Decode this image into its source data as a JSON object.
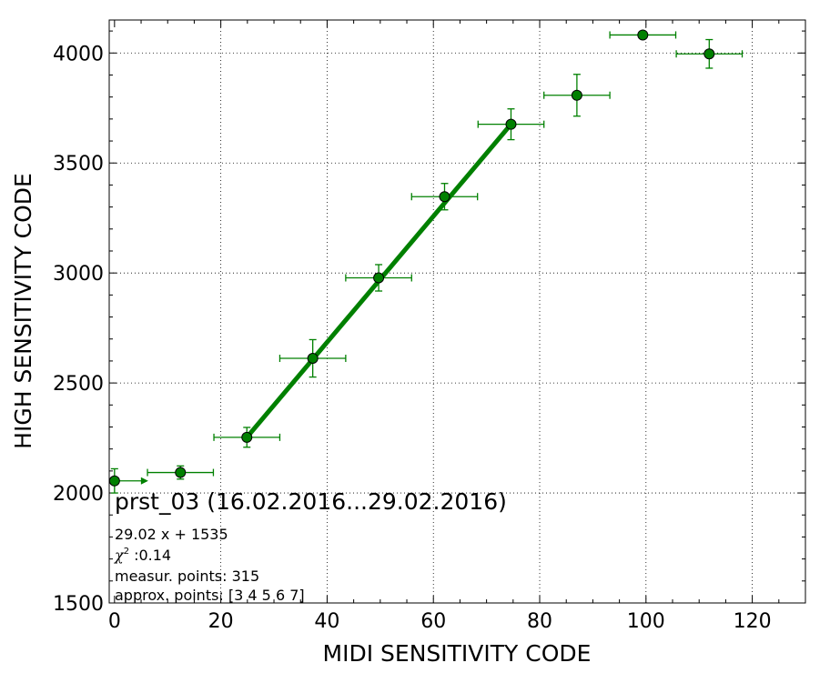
{
  "chart_data": {
    "type": "scatter",
    "title": "",
    "xlabel": "MIDI SENSITIVITY CODE",
    "ylabel": "HIGH SENSITIVITY CODE",
    "xlim": [
      -1,
      130
    ],
    "ylim": [
      1500,
      4150
    ],
    "x_ticks": [
      0,
      20,
      40,
      60,
      80,
      100,
      120
    ],
    "y_ticks": [
      1500,
      2000,
      2500,
      3000,
      3500,
      4000
    ],
    "x_tick_labels": [
      "0",
      "20",
      "40",
      "60",
      "80",
      "100",
      "120"
    ],
    "y_tick_labels": [
      "1500",
      "2000",
      "2500",
      "3000",
      "3500",
      "4000"
    ],
    "grid": true,
    "marker_color": "#008000",
    "line_color": "#008000",
    "points": [
      {
        "x": 0,
        "y": 2055,
        "xerr": 6,
        "yerr": 55
      },
      {
        "x": 12.4,
        "y": 2093,
        "xerr": 6.2,
        "yerr": 30
      },
      {
        "x": 24.9,
        "y": 2253,
        "xerr": 6.2,
        "yerr": 45
      },
      {
        "x": 37.3,
        "y": 2612,
        "xerr": 6.2,
        "yerr": 85
      },
      {
        "x": 49.7,
        "y": 2978,
        "xerr": 6.2,
        "yerr": 60
      },
      {
        "x": 62.1,
        "y": 3347,
        "xerr": 6.2,
        "yerr": 60
      },
      {
        "x": 74.6,
        "y": 3676,
        "xerr": 6.2,
        "yerr": 70
      },
      {
        "x": 87.0,
        "y": 3808,
        "xerr": 6.2,
        "yerr": 95
      },
      {
        "x": 99.4,
        "y": 4082,
        "xerr": 6.2,
        "yerr": 0
      },
      {
        "x": 111.9,
        "y": 3996,
        "xerr": 6.2,
        "yerr": 65
      }
    ],
    "fit_line": {
      "x": [
        24.9,
        74.6
      ],
      "y": [
        2253,
        3676
      ]
    },
    "annotation": {
      "title": "prst_03 (16.02.2016...29.02.2016)",
      "equation": "29.02 x + 1535",
      "chi_symbol": "χ",
      "chi_value": ":0.14",
      "measur": "measur. points: 315",
      "approx": "approx. points: [3 4 5 6 7]"
    }
  }
}
